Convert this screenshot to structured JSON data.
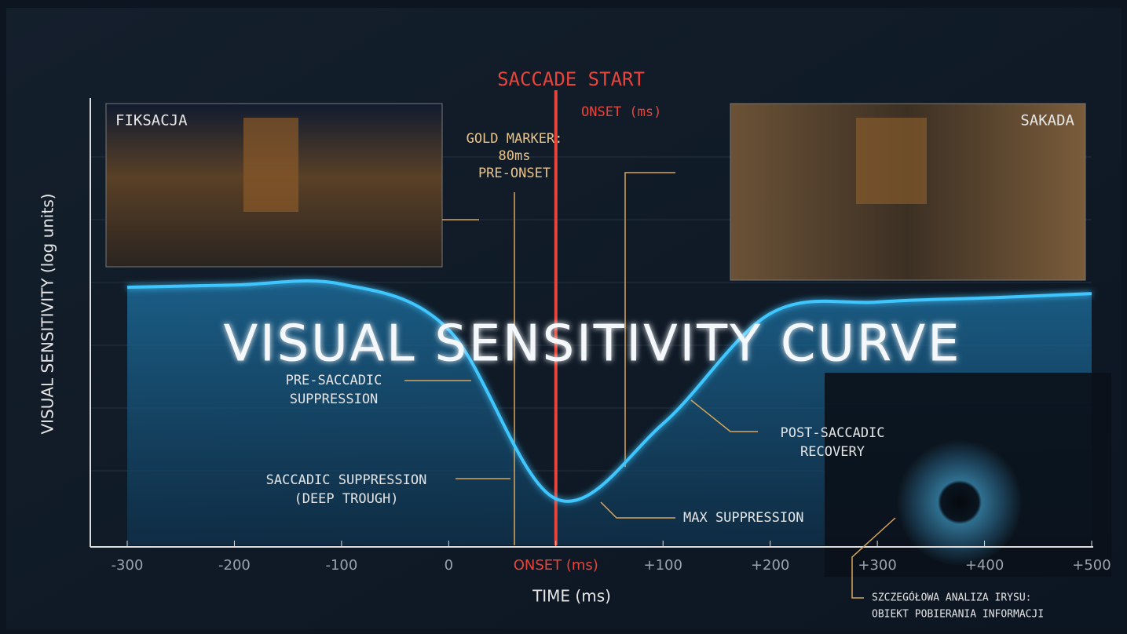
{
  "chart_data": {
    "type": "line",
    "title": "VISUAL SENSITIVITY CURVE",
    "y_label": "VISUAL SENSITIVITY (log units)",
    "x_label": "TIME (ms)",
    "categories": [
      "-300",
      "-200",
      "-100",
      "0",
      "ONSET (ms)",
      "+100",
      "+200",
      "+300",
      "+400",
      "+500"
    ],
    "values": [
      5.77,
      5.82,
      5.84,
      4.82,
      1.04,
      2.72,
      5.18,
      5.44,
      5.53,
      5.63
    ],
    "color": "#3fc6ff",
    "ylim": [
      0,
      10
    ],
    "highlight_category_color": "#e8443a",
    "annotations": {
      "saccade_start": "SACCADE START",
      "onset_top": "ONSET (ms)",
      "gold_marker": [
        "GOLD MARKER:",
        "80ms",
        "PRE-ONSET"
      ],
      "pre": [
        "PRE-SACCADIC",
        "SUPPRESSION"
      ],
      "deep": [
        "SACCADIC SUPPRESSION",
        "(DEEP TROUGH)"
      ],
      "max": "MAX SUPPRESSION",
      "post": [
        "POST-SACCADIC",
        "RECOVERY"
      ]
    },
    "panels": {
      "left": "FIKSACJA",
      "right": "SAKADA",
      "iris": [
        "SZCZEGÓŁOWA ANALIZA IRYSU:",
        "OBIEKT POBIERANIA INFORMACJI"
      ]
    }
  }
}
